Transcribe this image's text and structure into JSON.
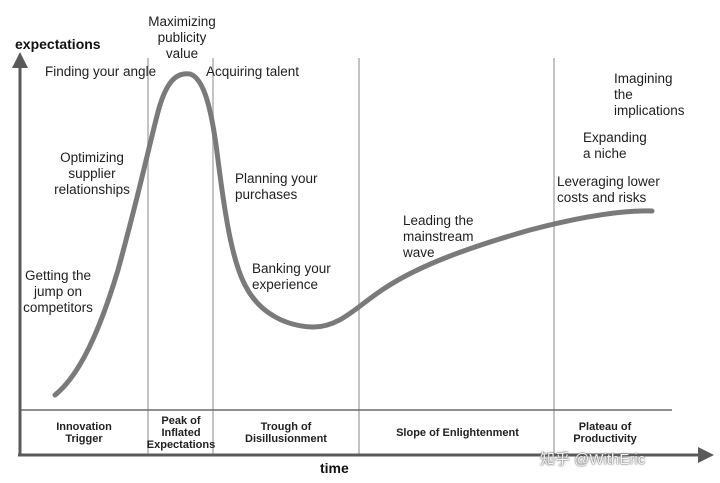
{
  "axes": {
    "y_label": "expectations",
    "x_label": "time"
  },
  "colors": {
    "curve": "#7a7a7a",
    "axis": "#5a5a5a",
    "divider": "#c4c4c4",
    "text": "#1e1e1e"
  },
  "phases": [
    "Innovation\nTrigger",
    "Peak of\nInflated\nExpectations",
    "Trough of\nDisillusionment",
    "Slope of Enlightenment",
    "Plateau of\nProductivity"
  ],
  "annotations": {
    "maximizing": "Maximizing\npublicity\nvalue",
    "finding_angle": "Finding your angle",
    "acquiring_talent": "Acquiring talent",
    "optimizing": "Optimizing\nsupplier\nrelationships",
    "getting_jump": "Getting the\njump on\ncompetitors",
    "planning": "Planning your\npurchases",
    "banking": "Banking your\nexperience",
    "leading": "Leading the\nmainstream\nwave",
    "leveraging": "Leveraging lower\ncosts and risks",
    "expanding": "Expanding\na niche",
    "imagining": "Imagining\nthe\nimplications"
  },
  "watermark": "知乎 @WithEric"
}
